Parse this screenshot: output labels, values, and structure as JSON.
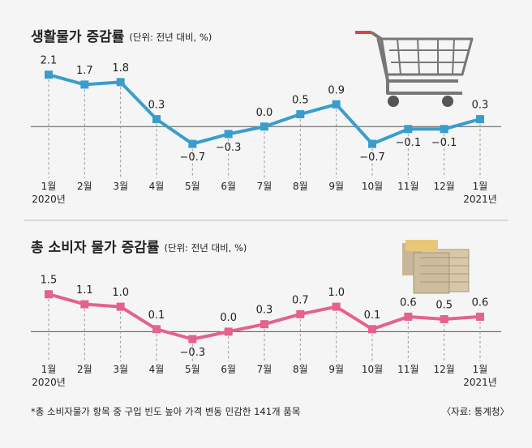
{
  "chart_data": [
    {
      "type": "line",
      "title": "생활물가 증감률",
      "subtitle": "(단위: 전년 대비, %)",
      "categories": [
        "1월\n2020년",
        "2월",
        "3월",
        "4월",
        "5월",
        "6월",
        "7월",
        "8월",
        "9월",
        "10월",
        "11월",
        "12월",
        "1월\n2021년"
      ],
      "series": [
        {
          "name": "생활물가 증감률",
          "color": "#3a9dcc",
          "values": [
            2.1,
            1.7,
            1.8,
            0.3,
            -0.7,
            -0.3,
            0.0,
            0.5,
            0.9,
            -0.7,
            -0.1,
            -0.1,
            0.3
          ],
          "value_labels": [
            "2.1",
            "1.7",
            "1.8",
            "0.3",
            "−0.7",
            "−0.3",
            "0.0",
            "0.5",
            "0.9",
            "−0.7",
            "−0.1",
            "−0.1",
            "0.3"
          ]
        }
      ],
      "ylim": [
        -1.5,
        2.5
      ]
    },
    {
      "type": "line",
      "title": "총 소비자 물가 증감률",
      "subtitle": "(단위: 전년 대비, %)",
      "categories": [
        "1월\n2020년",
        "2월",
        "3월",
        "4월",
        "5월",
        "6월",
        "7월",
        "8월",
        "9월",
        "10월",
        "11월",
        "12월",
        "1월\n2021년"
      ],
      "series": [
        {
          "name": "총 소비자 물가 증감률",
          "color": "#e3628e",
          "values": [
            1.5,
            1.1,
            1.0,
            0.1,
            -0.3,
            0.0,
            0.3,
            0.7,
            1.0,
            0.1,
            0.6,
            0.5,
            0.6
          ],
          "value_labels": [
            "1.5",
            "1.1",
            "1.0",
            "0.1",
            "−0.3",
            "0.0",
            "0.3",
            "0.7",
            "1.0",
            "0.1",
            "0.6",
            "0.5",
            "0.6"
          ]
        }
      ],
      "ylim": [
        -0.8,
        1.8
      ]
    }
  ],
  "footnote": "*총 소비자물가 항목 중 구입 빈도 높아 가격 변동 민감한 141개 품목",
  "source": "〈자료: 통계청〉"
}
